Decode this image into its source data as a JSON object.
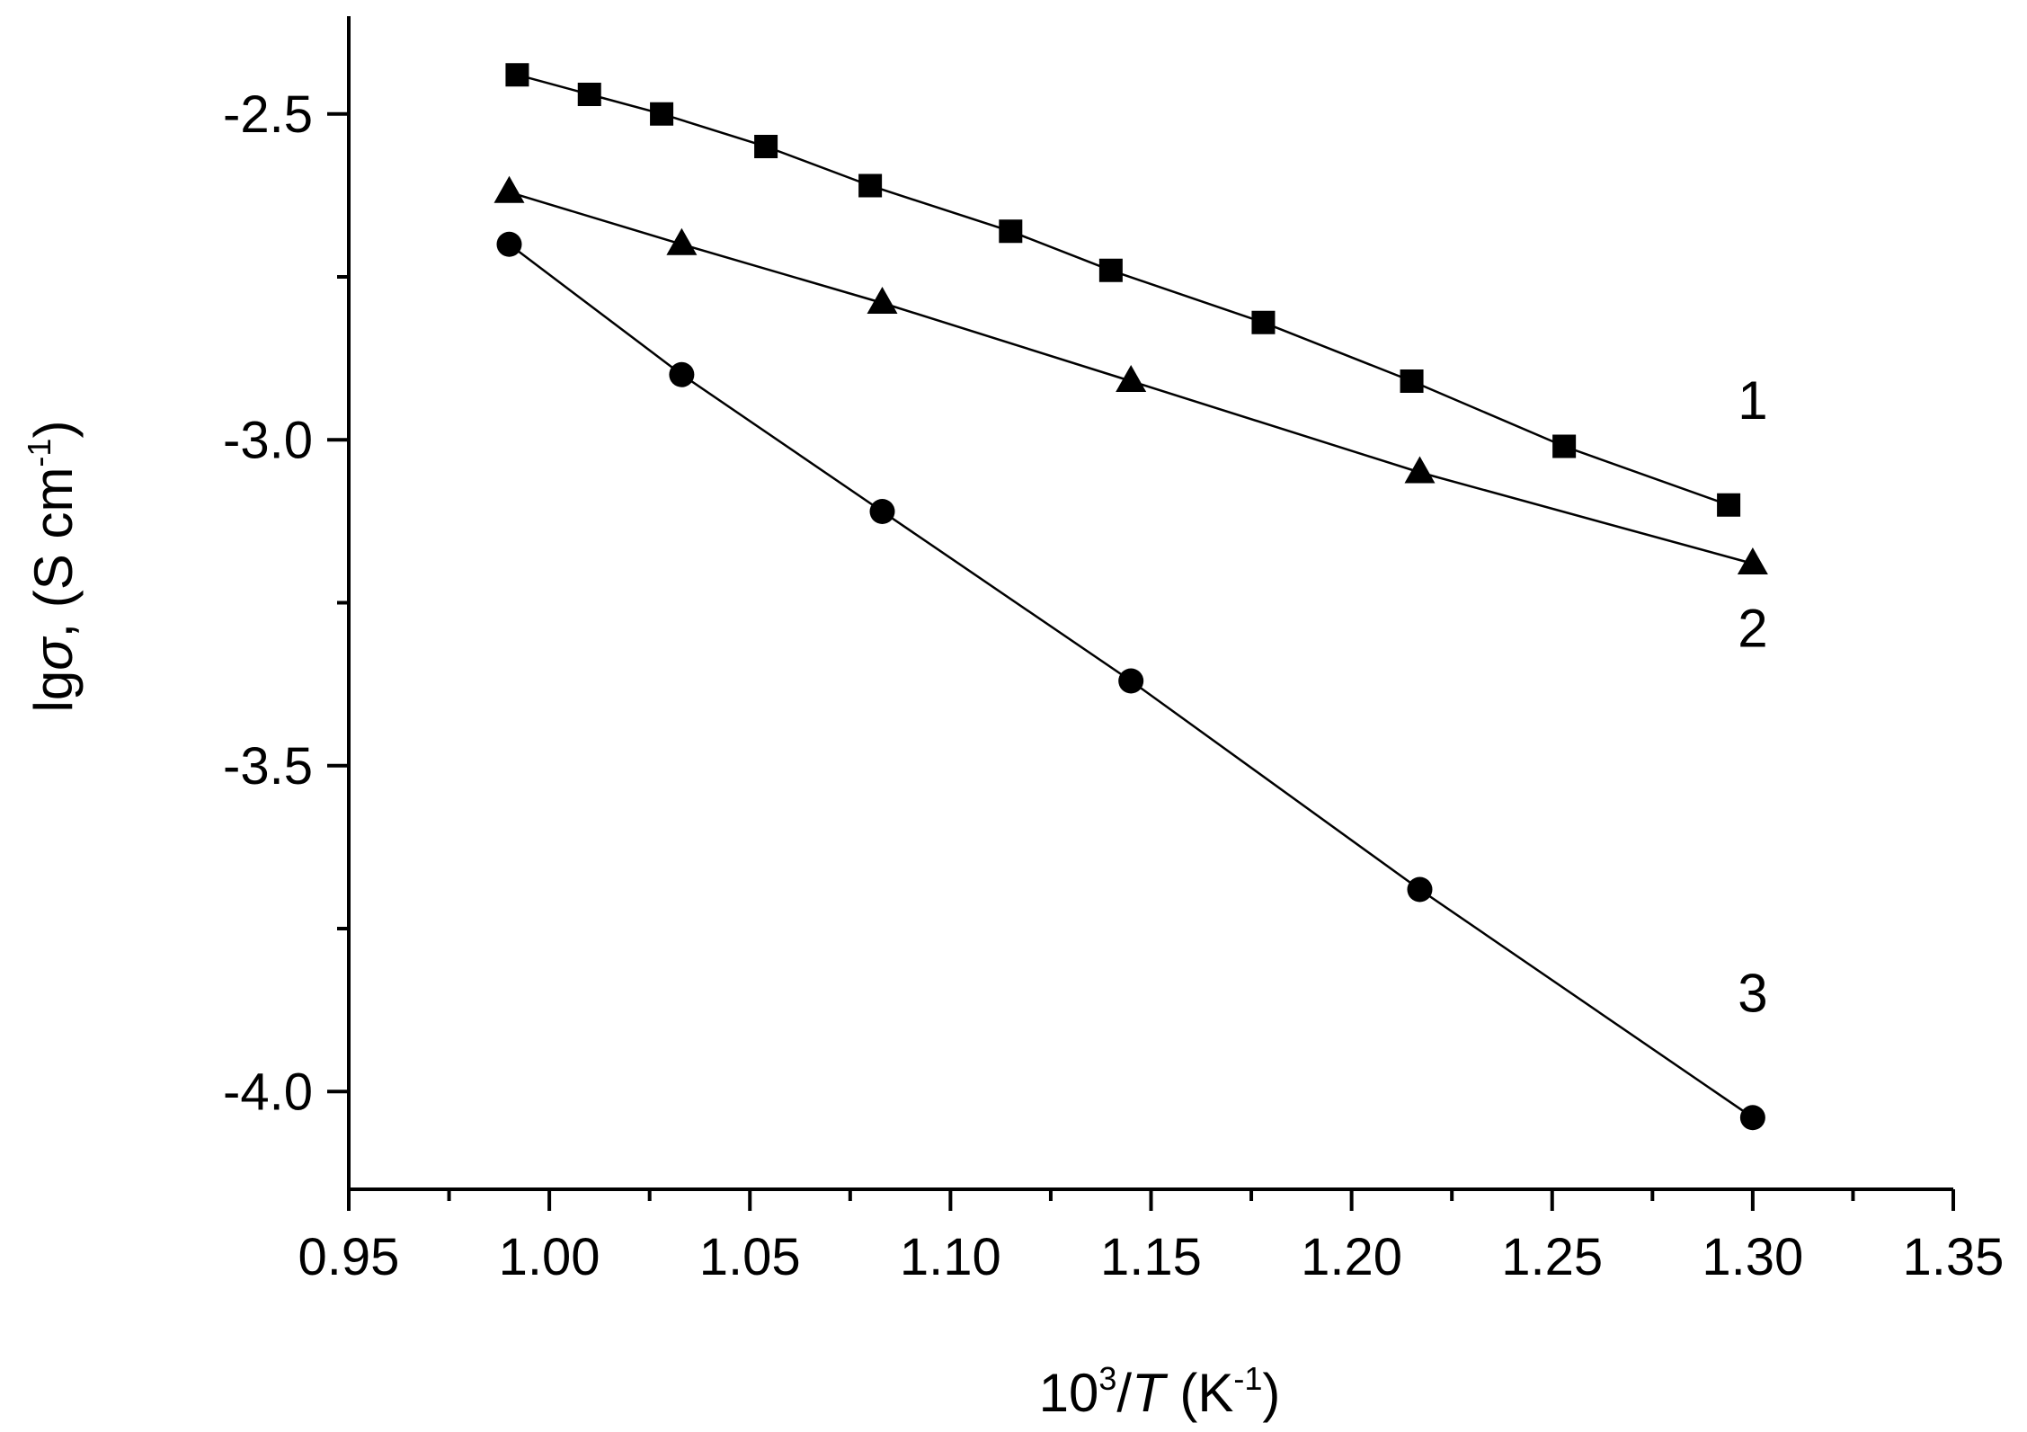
{
  "chart_data": {
    "type": "line",
    "title": "",
    "xlabel": {
      "base": "10",
      "exp": "3",
      "mid": "/",
      "var": "T",
      "unit_open": " (K",
      "unit_exp": "-1",
      "unit_close": ")"
    },
    "ylabel": {
      "prefix": "lg",
      "sym": "σ",
      "unit_open": ", (S cm",
      "unit_exp": "-1",
      "unit_close": ")"
    },
    "xlim": [
      0.95,
      1.35
    ],
    "ylim": [
      -4.15,
      -2.35
    ],
    "x_ticks": [
      0.95,
      1.0,
      1.05,
      1.1,
      1.15,
      1.2,
      1.25,
      1.3,
      1.35
    ],
    "x_tick_labels": [
      "0.95",
      "1.00",
      "1.05",
      "1.10",
      "1.15",
      "1.20",
      "1.25",
      "1.30",
      "1.35"
    ],
    "y_ticks": [
      -2.5,
      -3.0,
      -3.5,
      -4.0
    ],
    "y_tick_labels": [
      "-2.5",
      "-3.0",
      "-3.5",
      "-4.0"
    ],
    "grid": false,
    "series": [
      {
        "name": "1",
        "marker": "square",
        "x": [
          0.992,
          1.01,
          1.028,
          1.054,
          1.08,
          1.115,
          1.14,
          1.178,
          1.215,
          1.253,
          1.294
        ],
        "y": [
          -2.44,
          -2.47,
          -2.5,
          -2.55,
          -2.61,
          -2.68,
          -2.74,
          -2.82,
          -2.91,
          -3.01,
          -3.1
        ]
      },
      {
        "name": "2",
        "marker": "triangle",
        "x": [
          0.99,
          1.033,
          1.083,
          1.145,
          1.217,
          1.3
        ],
        "y": [
          -2.62,
          -2.7,
          -2.79,
          -2.91,
          -3.05,
          -3.19
        ]
      },
      {
        "name": "3",
        "marker": "circle",
        "x": [
          0.99,
          1.033,
          1.083,
          1.145,
          1.217,
          1.3
        ],
        "y": [
          -2.7,
          -2.9,
          -3.11,
          -3.37,
          -3.69,
          -4.04
        ]
      }
    ],
    "annotations": [
      {
        "text": "1",
        "x": 1.3,
        "y": -2.94
      },
      {
        "text": "2",
        "x": 1.3,
        "y": -3.29
      },
      {
        "text": "3",
        "x": 1.3,
        "y": -3.85
      }
    ]
  }
}
